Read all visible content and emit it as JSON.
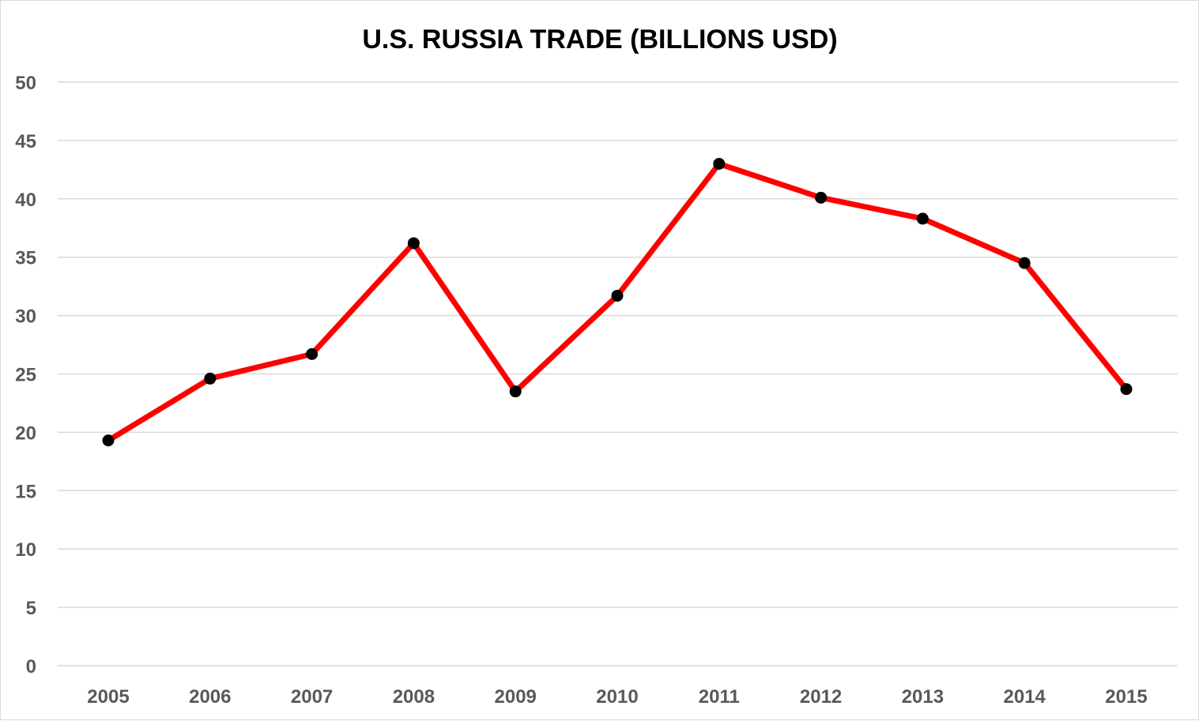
{
  "chart_data": {
    "type": "line",
    "title": "U.S. RUSSIA TRADE (BILLIONS USD)",
    "xlabel": "",
    "ylabel": "",
    "categories": [
      "2005",
      "2006",
      "2007",
      "2008",
      "2009",
      "2010",
      "2011",
      "2012",
      "2013",
      "2014",
      "2015"
    ],
    "series": [
      {
        "values": [
          19.3,
          24.6,
          26.7,
          36.2,
          23.5,
          31.7,
          43.0,
          40.1,
          38.3,
          34.5,
          23.7
        ],
        "color": "#ff0000",
        "marker_color": "#000000"
      }
    ],
    "ylim": [
      0,
      50
    ],
    "yticks": [
      0,
      5,
      10,
      15,
      20,
      25,
      30,
      35,
      40,
      45,
      50
    ],
    "grid": true,
    "grid_color": "#d9d9d9",
    "legend": "none"
  }
}
